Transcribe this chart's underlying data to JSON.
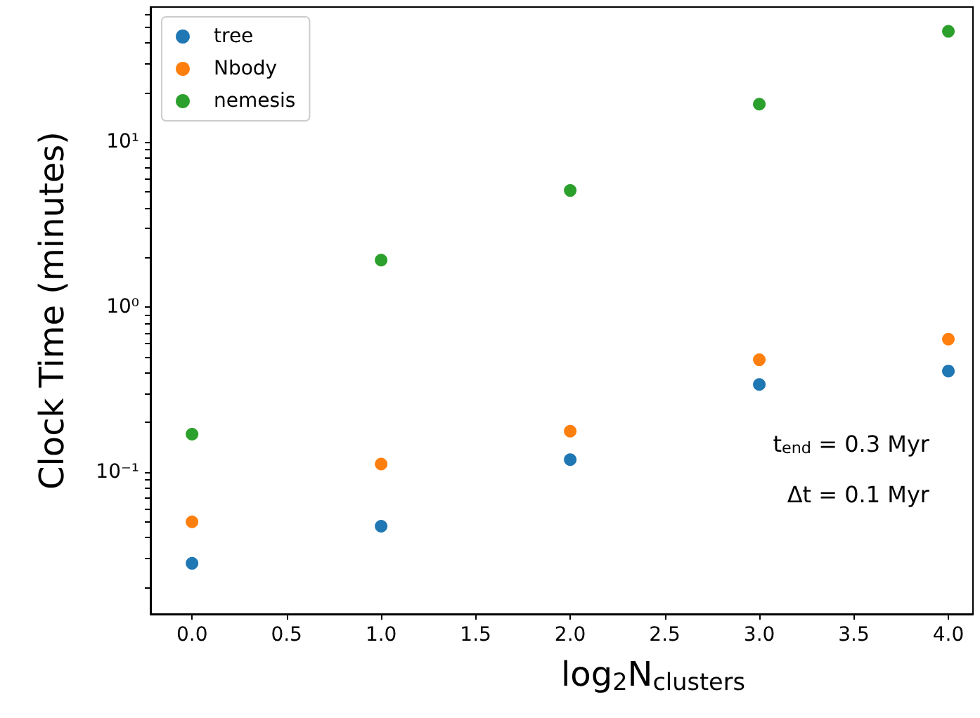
{
  "chart_data": {
    "type": "scatter",
    "xlabel": "log$_{2}$N$_{clusters}$",
    "ylabel": "Clock Time (minutes)",
    "x": [
      0,
      1,
      2,
      3,
      4
    ],
    "series": [
      {
        "name": "tree",
        "color": "#1f77b4",
        "values": [
          0.028,
          0.047,
          0.119,
          0.34,
          0.41
        ]
      },
      {
        "name": "Nbody",
        "color": "#ff7f0e",
        "values": [
          0.05,
          0.112,
          0.177,
          0.48,
          0.64
        ]
      },
      {
        "name": "nemesis",
        "color": "#2ca02c",
        "values": [
          0.17,
          1.93,
          5.1,
          17,
          47
        ]
      }
    ],
    "xlim": [
      -0.22,
      4.13
    ],
    "xticks": [
      {
        "value": 0,
        "label": "0.0"
      },
      {
        "value": 0.5,
        "label": "0.5"
      },
      {
        "value": 1,
        "label": "1.0"
      },
      {
        "value": 1.5,
        "label": "1.5"
      },
      {
        "value": 2,
        "label": "2.0"
      },
      {
        "value": 2.5,
        "label": "2.5"
      },
      {
        "value": 3,
        "label": "3.0"
      },
      {
        "value": 3.5,
        "label": "3.5"
      },
      {
        "value": 4,
        "label": "4.0"
      }
    ],
    "ylim": [
      0.0138,
      66
    ],
    "yticks": [
      {
        "value": 0.02,
        "label": null
      },
      {
        "value": 0.03,
        "label": null
      },
      {
        "value": 0.04,
        "label": null
      },
      {
        "value": 0.05,
        "label": null
      },
      {
        "value": 0.06,
        "label": null
      },
      {
        "value": 0.07,
        "label": null
      },
      {
        "value": 0.08,
        "label": null
      },
      {
        "value": 0.09,
        "label": null
      },
      {
        "value": 0.1,
        "label": "10⁻¹"
      },
      {
        "value": 0.2,
        "label": null
      },
      {
        "value": 0.3,
        "label": null
      },
      {
        "value": 0.4,
        "label": null
      },
      {
        "value": 0.5,
        "label": null
      },
      {
        "value": 0.6,
        "label": null
      },
      {
        "value": 0.7,
        "label": null
      },
      {
        "value": 0.8,
        "label": null
      },
      {
        "value": 0.9,
        "label": null
      },
      {
        "value": 1,
        "label": "10⁰"
      },
      {
        "value": 2,
        "label": null
      },
      {
        "value": 3,
        "label": null
      },
      {
        "value": 4,
        "label": null
      },
      {
        "value": 5,
        "label": null
      },
      {
        "value": 6,
        "label": null
      },
      {
        "value": 7,
        "label": null
      },
      {
        "value": 8,
        "label": null
      },
      {
        "value": 9,
        "label": null
      },
      {
        "value": 10,
        "label": "10¹"
      },
      {
        "value": 20,
        "label": null
      },
      {
        "value": 30,
        "label": null
      },
      {
        "value": 40,
        "label": null
      },
      {
        "value": 50,
        "label": null
      },
      {
        "value": 60,
        "label": null
      }
    ],
    "log": "y",
    "grid": false,
    "legend": "top left",
    "marker": "circle",
    "annotations": [
      "t$_{end}$ = 0.3 Myr",
      "Δt = 0.1 Myr"
    ]
  }
}
